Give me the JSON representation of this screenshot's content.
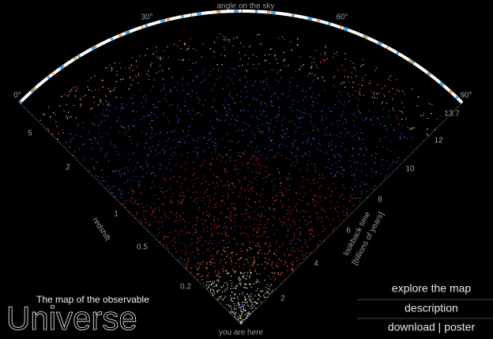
{
  "angle_axis": {
    "title": "angle on the sky",
    "ticks": [
      "0°",
      "30°",
      "60°",
      "90°"
    ]
  },
  "redshift_axis": {
    "title": "redshift",
    "ticks": [
      "5",
      "2",
      "1",
      "0.5",
      "0.2"
    ]
  },
  "lookback_axis": {
    "title": "lookback time",
    "subtitle": "[billions of years]",
    "ticks": [
      "2",
      "4",
      "6",
      "8",
      "10",
      "12",
      "13.7"
    ]
  },
  "you_are_here": "you are here",
  "branding": {
    "tagline": "The map of the observable",
    "title": "Universe"
  },
  "menu": {
    "items": [
      "explore the map",
      "description",
      "download | poster"
    ]
  }
}
